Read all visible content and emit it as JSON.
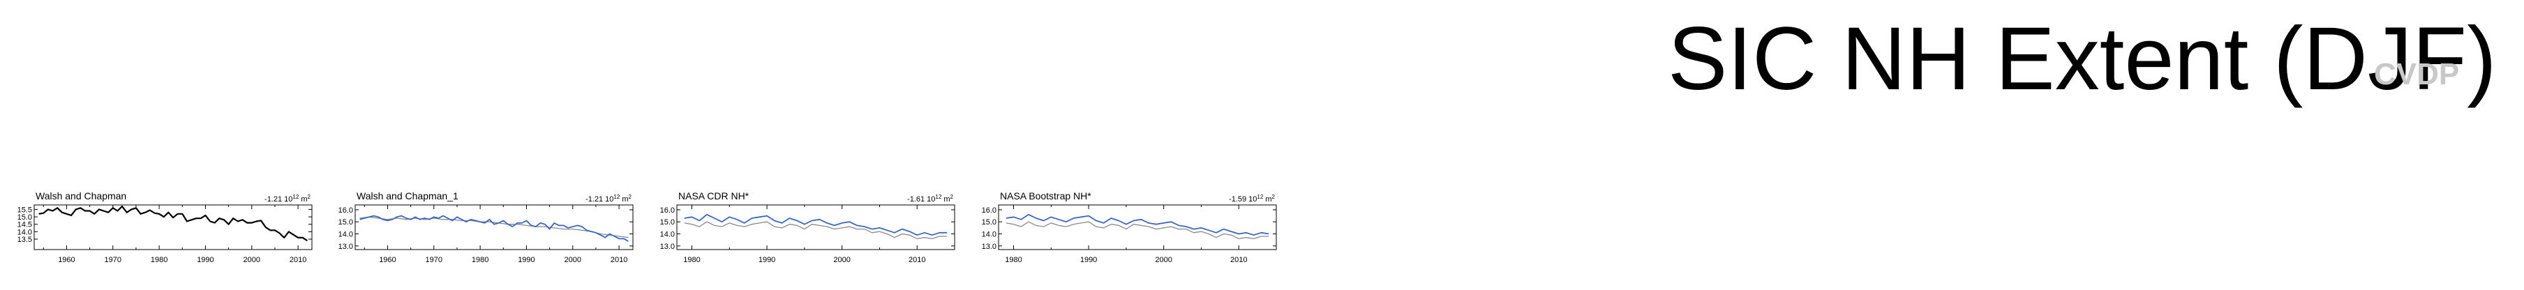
{
  "page": {
    "title": "SIC NH Extent (DJF)",
    "watermark": "CVDP"
  },
  "colors": {
    "observed": "#000000",
    "model": "#3b66c4",
    "reference": "#8a8a8a"
  },
  "chart_data": [
    {
      "type": "line",
      "title": "Walsh and Chapman",
      "trend": "-1.21 10",
      "trend_exp": "12",
      "trend_unit": " m",
      "trend_unit_exp": "2",
      "xlim": [
        1953,
        2013
      ],
      "ylim": [
        12.8,
        15.8
      ],
      "xticks": [
        1960,
        1970,
        1980,
        1990,
        2000,
        2010
      ],
      "yticks": [
        13.5,
        14.0,
        14.5,
        15.0,
        15.5
      ],
      "yticklabels": [
        "13.5",
        "14.0",
        "14.5",
        "15.0",
        "15.5"
      ],
      "series": [
        {
          "role": "observed",
          "x": [
            1954,
            1955,
            1956,
            1957,
            1958,
            1959,
            1960,
            1961,
            1962,
            1963,
            1964,
            1965,
            1966,
            1967,
            1968,
            1969,
            1970,
            1971,
            1972,
            1973,
            1974,
            1975,
            1976,
            1977,
            1978,
            1979,
            1980,
            1981,
            1982,
            1983,
            1984,
            1985,
            1986,
            1987,
            1988,
            1989,
            1990,
            1991,
            1992,
            1993,
            1994,
            1995,
            1996,
            1997,
            1998,
            1999,
            2000,
            2001,
            2002,
            2003,
            2004,
            2005,
            2006,
            2007,
            2008,
            2009,
            2010,
            2011,
            2012
          ],
          "y": [
            15.2,
            15.25,
            15.5,
            15.4,
            15.6,
            15.3,
            15.2,
            15.1,
            15.5,
            15.6,
            15.4,
            15.4,
            15.2,
            15.5,
            15.4,
            15.3,
            15.6,
            15.4,
            15.7,
            15.3,
            15.5,
            15.6,
            15.2,
            15.3,
            15.45,
            15.25,
            15.2,
            15.0,
            15.3,
            14.95,
            15.2,
            15.2,
            14.7,
            14.8,
            14.9,
            14.9,
            15.1,
            14.7,
            14.6,
            14.9,
            14.8,
            14.5,
            14.9,
            14.7,
            14.8,
            14.6,
            14.6,
            14.7,
            14.75,
            14.3,
            14.1,
            14.1,
            13.9,
            13.6,
            14.0,
            13.8,
            13.6,
            13.6,
            13.4
          ]
        }
      ]
    },
    {
      "type": "line",
      "title": "Walsh and Chapman_1",
      "trend": "-1.21 10",
      "trend_exp": "12",
      "trend_unit": " m",
      "trend_unit_exp": "2",
      "xlim": [
        1953,
        2013
      ],
      "ylim": [
        12.7,
        16.4
      ],
      "xticks": [
        1960,
        1970,
        1980,
        1990,
        2000,
        2010
      ],
      "yticks": [
        13.0,
        14.0,
        15.0,
        16.0
      ],
      "yticklabels": [
        "13.0",
        "14.0",
        "15.0",
        "16.0"
      ],
      "series": [
        {
          "role": "reference",
          "x": [
            1954,
            1956,
            1958,
            1960,
            1962,
            1964,
            1966,
            1968,
            1970,
            1972,
            1974,
            1976,
            1978,
            1980,
            1982,
            1984,
            1986,
            1988,
            1990,
            1992,
            1994,
            1996,
            1998,
            2000,
            2002,
            2004,
            2006,
            2008,
            2010,
            2012
          ],
          "y": [
            15.3,
            15.4,
            15.3,
            15.2,
            15.3,
            15.2,
            15.3,
            15.2,
            15.3,
            15.2,
            15.2,
            15.1,
            15.1,
            15.0,
            15.0,
            14.9,
            14.8,
            14.8,
            14.7,
            14.6,
            14.6,
            14.5,
            14.4,
            14.4,
            14.3,
            14.2,
            14.0,
            13.9,
            13.8,
            13.7
          ]
        },
        {
          "role": "model",
          "x": [
            1954,
            1955,
            1956,
            1957,
            1958,
            1959,
            1960,
            1961,
            1962,
            1963,
            1964,
            1965,
            1966,
            1967,
            1968,
            1969,
            1970,
            1971,
            1972,
            1973,
            1974,
            1975,
            1976,
            1977,
            1978,
            1979,
            1980,
            1981,
            1982,
            1983,
            1984,
            1985,
            1986,
            1987,
            1988,
            1989,
            1990,
            1991,
            1992,
            1993,
            1994,
            1995,
            1996,
            1997,
            1998,
            1999,
            2000,
            2001,
            2002,
            2003,
            2004,
            2005,
            2006,
            2007,
            2008,
            2009,
            2010,
            2011,
            2012
          ],
          "y": [
            15.2,
            15.3,
            15.4,
            15.5,
            15.4,
            15.2,
            15.1,
            15.2,
            15.4,
            15.5,
            15.3,
            15.2,
            15.4,
            15.2,
            15.3,
            15.2,
            15.4,
            15.3,
            15.5,
            15.3,
            15.1,
            15.4,
            15.2,
            15.0,
            15.2,
            15.1,
            15.0,
            14.9,
            15.2,
            14.8,
            14.9,
            15.1,
            14.8,
            14.6,
            14.9,
            14.9,
            15.1,
            14.7,
            14.6,
            14.9,
            14.8,
            14.4,
            14.9,
            14.7,
            14.7,
            14.5,
            14.6,
            14.7,
            14.6,
            14.3,
            14.2,
            14.1,
            13.9,
            13.7,
            14.0,
            13.8,
            13.6,
            13.6,
            13.4
          ]
        }
      ]
    },
    {
      "type": "line",
      "title": "NASA CDR NH*",
      "trend": "-1.61 10",
      "trend_exp": "12",
      "trend_unit": " m",
      "trend_unit_exp": "2",
      "xlim": [
        1978,
        2015
      ],
      "ylim": [
        12.7,
        16.4
      ],
      "xticks": [
        1980,
        1990,
        2000,
        2010
      ],
      "yticks": [
        13.0,
        14.0,
        15.0,
        16.0
      ],
      "yticklabels": [
        "13.0",
        "14.0",
        "15.0",
        "16.0"
      ],
      "series": [
        {
          "role": "reference",
          "x": [
            1979,
            1980,
            1981,
            1982,
            1983,
            1984,
            1985,
            1986,
            1987,
            1988,
            1989,
            1990,
            1991,
            1992,
            1993,
            1994,
            1995,
            1996,
            1997,
            1998,
            1999,
            2000,
            2001,
            2002,
            2003,
            2004,
            2005,
            2006,
            2007,
            2008,
            2009,
            2010,
            2011,
            2012,
            2013,
            2014
          ],
          "y": [
            14.9,
            14.8,
            14.6,
            15.0,
            14.7,
            14.6,
            14.9,
            14.7,
            14.6,
            14.8,
            14.9,
            15.0,
            14.6,
            14.5,
            14.8,
            14.7,
            14.4,
            14.8,
            14.7,
            14.6,
            14.4,
            14.5,
            14.6,
            14.4,
            14.4,
            14.1,
            14.2,
            14.0,
            13.7,
            14.0,
            13.9,
            13.6,
            13.7,
            13.6,
            13.8,
            13.8
          ]
        },
        {
          "role": "model",
          "x": [
            1979,
            1980,
            1981,
            1982,
            1983,
            1984,
            1985,
            1986,
            1987,
            1988,
            1989,
            1990,
            1991,
            1992,
            1993,
            1994,
            1995,
            1996,
            1997,
            1998,
            1999,
            2000,
            2001,
            2002,
            2003,
            2004,
            2005,
            2006,
            2007,
            2008,
            2009,
            2010,
            2011,
            2012,
            2013,
            2014
          ],
          "y": [
            15.3,
            15.4,
            15.1,
            15.6,
            15.3,
            15.0,
            15.4,
            15.2,
            14.9,
            15.3,
            15.4,
            15.5,
            15.1,
            14.9,
            15.3,
            15.1,
            14.8,
            15.1,
            15.2,
            14.9,
            14.7,
            14.9,
            15.0,
            14.7,
            14.6,
            14.4,
            14.5,
            14.3,
            14.1,
            14.4,
            14.2,
            13.9,
            14.1,
            13.9,
            14.1,
            14.1
          ]
        }
      ]
    },
    {
      "type": "line",
      "title": "NASA Bootstrap NH*",
      "trend": "-1.59 10",
      "trend_exp": "12",
      "trend_unit": " m",
      "trend_unit_exp": "2",
      "xlim": [
        1978,
        2015
      ],
      "ylim": [
        12.7,
        16.4
      ],
      "xticks": [
        1980,
        1990,
        2000,
        2010
      ],
      "yticks": [
        13.0,
        14.0,
        15.0,
        16.0
      ],
      "yticklabels": [
        "13.0",
        "14.0",
        "15.0",
        "16.0"
      ],
      "series": [
        {
          "role": "reference",
          "x": [
            1979,
            1980,
            1981,
            1982,
            1983,
            1984,
            1985,
            1986,
            1987,
            1988,
            1989,
            1990,
            1991,
            1992,
            1993,
            1994,
            1995,
            1996,
            1997,
            1998,
            1999,
            2000,
            2001,
            2002,
            2003,
            2004,
            2005,
            2006,
            2007,
            2008,
            2009,
            2010,
            2011,
            2012,
            2013,
            2014
          ],
          "y": [
            14.9,
            14.8,
            14.6,
            15.0,
            14.7,
            14.6,
            14.9,
            14.7,
            14.6,
            14.8,
            14.9,
            15.0,
            14.6,
            14.5,
            14.8,
            14.7,
            14.4,
            14.8,
            14.7,
            14.6,
            14.4,
            14.5,
            14.6,
            14.4,
            14.4,
            14.1,
            14.2,
            14.0,
            13.7,
            14.0,
            13.9,
            13.6,
            13.7,
            13.6,
            13.8,
            13.8
          ]
        },
        {
          "role": "model",
          "x": [
            1979,
            1980,
            1981,
            1982,
            1983,
            1984,
            1985,
            1986,
            1987,
            1988,
            1989,
            1990,
            1991,
            1992,
            1993,
            1994,
            1995,
            1996,
            1997,
            1998,
            1999,
            2000,
            2001,
            2002,
            2003,
            2004,
            2005,
            2006,
            2007,
            2008,
            2009,
            2010,
            2011,
            2012,
            2013,
            2014
          ],
          "y": [
            15.3,
            15.4,
            15.2,
            15.6,
            15.3,
            15.1,
            15.4,
            15.2,
            15.0,
            15.3,
            15.4,
            15.5,
            15.1,
            14.9,
            15.3,
            15.1,
            14.8,
            15.1,
            15.2,
            14.9,
            14.8,
            14.9,
            15.0,
            14.7,
            14.6,
            14.4,
            14.5,
            14.3,
            14.1,
            14.4,
            14.2,
            14.0,
            14.1,
            13.9,
            14.1,
            14.0
          ]
        }
      ]
    }
  ]
}
